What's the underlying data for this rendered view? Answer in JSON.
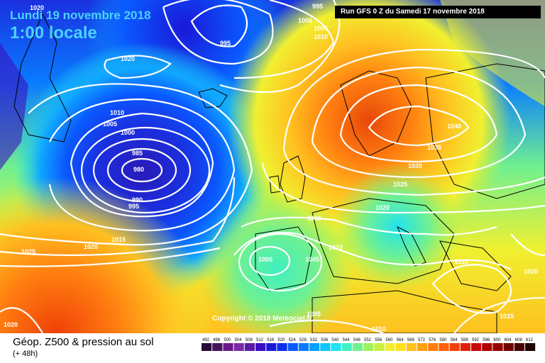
{
  "header": {
    "date": "Lundi 19 novembre 2018",
    "time": "1:00 locale",
    "run": "Run GFS 0 Z du Samedi 17 novembre 2018"
  },
  "copyright": "Copyright © 2018 Meteociel.fr",
  "footer": {
    "title": "Géop. Z500 & pression au sol",
    "subtitle": "(+ 48h)"
  },
  "legend": {
    "ticks": [
      "492",
      "496",
      "500",
      "504",
      "508",
      "512",
      "516",
      "520",
      "524",
      "528",
      "532",
      "536",
      "540",
      "544",
      "548",
      "552",
      "556",
      "560",
      "564",
      "568",
      "572",
      "576",
      "580",
      "584",
      "588",
      "592",
      "596",
      "600",
      "604",
      "608",
      "612"
    ],
    "colors": [
      "#2a0a3a",
      "#4a1260",
      "#6a1a86",
      "#7a2aa8",
      "#5a1aa8",
      "#3a10c0",
      "#1a18d8",
      "#0a30f0",
      "#0a58ff",
      "#0a7cff",
      "#0aa0ff",
      "#10c4ff",
      "#20e4f0",
      "#40f0c0",
      "#70f090",
      "#a0f060",
      "#c8f040",
      "#f0f030",
      "#ffe020",
      "#ffc020",
      "#ffa018",
      "#ff8010",
      "#ff600a",
      "#f04008",
      "#e02008",
      "#c80808",
      "#b00000",
      "#980000",
      "#700000",
      "#480000",
      "#200000"
    ]
  },
  "map": {
    "colors": {
      "deep_blue": "#1a18d8",
      "blue": "#0a58ff",
      "cyan": "#20e4f0",
      "green": "#70f090",
      "yellow": "#f0f030",
      "orange": "#ffa018",
      "red": "#ff600a"
    },
    "pressure_labels": [
      {
        "id": "p1020a",
        "text": "1020"
      },
      {
        "id": "p995a",
        "text": "995"
      },
      {
        "id": "p1000a",
        "text": "1000"
      },
      {
        "id": "p1005a",
        "text": "1005"
      },
      {
        "id": "p1010a",
        "text": "1010"
      },
      {
        "id": "p995b",
        "text": "995"
      },
      {
        "id": "p1020b",
        "text": "1020"
      },
      {
        "id": "p1010b",
        "text": "1010"
      },
      {
        "id": "p1005b",
        "text": "1005"
      },
      {
        "id": "p1000b",
        "text": "1000"
      },
      {
        "id": "p985",
        "text": "985"
      },
      {
        "id": "p980",
        "text": "980"
      },
      {
        "id": "p990",
        "text": "990"
      },
      {
        "id": "p995c",
        "text": "995"
      },
      {
        "id": "p1040",
        "text": "1040"
      },
      {
        "id": "p1035",
        "text": "1035"
      },
      {
        "id": "p1030",
        "text": "1030"
      },
      {
        "id": "p1025a",
        "text": "1025"
      },
      {
        "id": "p1020c",
        "text": "1020"
      },
      {
        "id": "p1015a",
        "text": "1015"
      },
      {
        "id": "p1010c",
        "text": "1010"
      },
      {
        "id": "p1015b",
        "text": "1015"
      },
      {
        "id": "p1020d",
        "text": "1020"
      },
      {
        "id": "p1025b",
        "text": "1025"
      },
      {
        "id": "p1000c",
        "text": "1000"
      },
      {
        "id": "p1005c",
        "text": "1005"
      },
      {
        "id": "p1010d",
        "text": "1010"
      },
      {
        "id": "p1020e",
        "text": "1020"
      },
      {
        "id": "p1015c",
        "text": "1015"
      },
      {
        "id": "p1005d",
        "text": "1005"
      },
      {
        "id": "p1010e",
        "text": "1010"
      },
      {
        "id": "p1020f",
        "text": "1020"
      }
    ]
  }
}
